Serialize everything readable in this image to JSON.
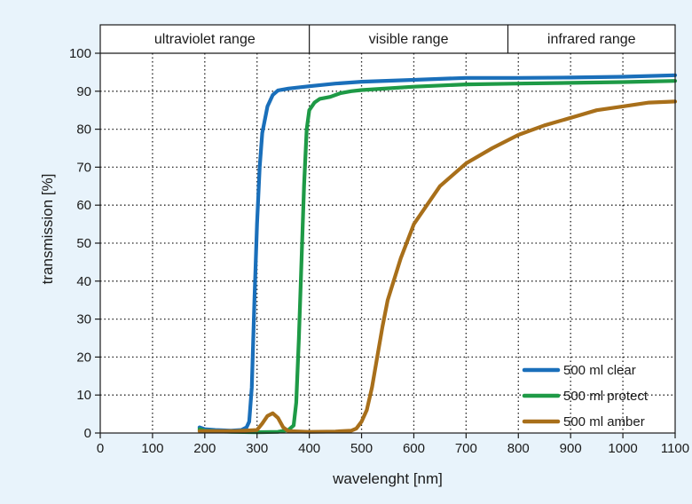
{
  "chart_data": {
    "type": "line",
    "title": "",
    "xlabel": "wavelenght [nm]",
    "ylabel": "transmission [%]",
    "xlim": [
      0,
      1100
    ],
    "ylim": [
      0,
      100
    ],
    "x_ticks": [
      0,
      100,
      200,
      300,
      400,
      500,
      600,
      700,
      800,
      900,
      1000,
      1100
    ],
    "y_ticks": [
      0,
      10,
      20,
      30,
      40,
      50,
      60,
      70,
      80,
      90,
      100
    ],
    "grid": true,
    "legend_position": "bottom-right",
    "ranges": [
      {
        "label": "ultraviolet range",
        "from": 0,
        "to": 400
      },
      {
        "label": "visible range",
        "from": 400,
        "to": 780
      },
      {
        "label": "infrared range",
        "from": 780,
        "to": 1100
      }
    ],
    "series": [
      {
        "name": "500 ml clear",
        "color": "#1a6fba",
        "points": [
          [
            190,
            1.5
          ],
          [
            200,
            1.0
          ],
          [
            220,
            0.8
          ],
          [
            250,
            0.6
          ],
          [
            270,
            0.8
          ],
          [
            280,
            1.5
          ],
          [
            285,
            3
          ],
          [
            290,
            12
          ],
          [
            295,
            35
          ],
          [
            300,
            55
          ],
          [
            305,
            70
          ],
          [
            310,
            79
          ],
          [
            320,
            86
          ],
          [
            330,
            89
          ],
          [
            340,
            90.2
          ],
          [
            360,
            90.7
          ],
          [
            400,
            91.3
          ],
          [
            450,
            92
          ],
          [
            500,
            92.5
          ],
          [
            600,
            93
          ],
          [
            700,
            93.5
          ],
          [
            800,
            93.5
          ],
          [
            900,
            93.6
          ],
          [
            1000,
            93.8
          ],
          [
            1100,
            94.2
          ]
        ]
      },
      {
        "name": "500 ml protect",
        "color": "#1e9a46",
        "points": [
          [
            190,
            1.0
          ],
          [
            200,
            0.6
          ],
          [
            250,
            0.3
          ],
          [
            300,
            0.2
          ],
          [
            340,
            0.3
          ],
          [
            360,
            0.8
          ],
          [
            370,
            2
          ],
          [
            375,
            8
          ],
          [
            380,
            25
          ],
          [
            385,
            45
          ],
          [
            390,
            65
          ],
          [
            395,
            80
          ],
          [
            400,
            85
          ],
          [
            410,
            87
          ],
          [
            420,
            88
          ],
          [
            440,
            88.5
          ],
          [
            460,
            89.5
          ],
          [
            480,
            90
          ],
          [
            500,
            90.3
          ],
          [
            600,
            91.2
          ],
          [
            700,
            91.8
          ],
          [
            800,
            92
          ],
          [
            900,
            92.2
          ],
          [
            1000,
            92.4
          ],
          [
            1100,
            92.7
          ]
        ]
      },
      {
        "name": "500 ml amber",
        "color": "#a86f1a",
        "points": [
          [
            190,
            0.5
          ],
          [
            220,
            0.5
          ],
          [
            260,
            0.5
          ],
          [
            300,
            0.8
          ],
          [
            310,
            2.5
          ],
          [
            320,
            4.5
          ],
          [
            330,
            5.2
          ],
          [
            340,
            4
          ],
          [
            350,
            1.5
          ],
          [
            360,
            0.5
          ],
          [
            400,
            0.3
          ],
          [
            450,
            0.4
          ],
          [
            480,
            0.6
          ],
          [
            490,
            1.2
          ],
          [
            500,
            3
          ],
          [
            510,
            6
          ],
          [
            520,
            12
          ],
          [
            530,
            20
          ],
          [
            540,
            28
          ],
          [
            550,
            35
          ],
          [
            575,
            46
          ],
          [
            600,
            55
          ],
          [
            650,
            65
          ],
          [
            700,
            71
          ],
          [
            750,
            75
          ],
          [
            800,
            78.5
          ],
          [
            850,
            81
          ],
          [
            900,
            83
          ],
          [
            950,
            85
          ],
          [
            1000,
            86
          ],
          [
            1050,
            87
          ],
          [
            1100,
            87.3
          ]
        ]
      }
    ]
  }
}
